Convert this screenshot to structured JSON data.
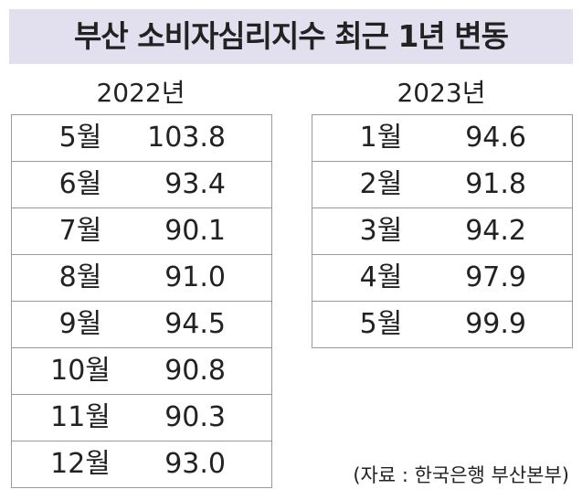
{
  "title": "부산 소비자심리지수 최근 1년 변동",
  "tables": [
    {
      "year": "2022년",
      "rows": [
        [
          "5월",
          "103.8"
        ],
        [
          "6월",
          "93.4"
        ],
        [
          "7월",
          "90.1"
        ],
        [
          "8월",
          "91.0"
        ],
        [
          "9월",
          "94.5"
        ],
        [
          "10월",
          "90.8"
        ],
        [
          "11월",
          "90.3"
        ],
        [
          "12월",
          "93.0"
        ]
      ]
    },
    {
      "year": "2023년",
      "rows": [
        [
          "1월",
          "94.6"
        ],
        [
          "2월",
          "91.8"
        ],
        [
          "3월",
          "94.2"
        ],
        [
          "4월",
          "97.9"
        ],
        [
          "5월",
          "99.9"
        ]
      ]
    }
  ],
  "source": "(자료 : 한국은행 부산본부)"
}
